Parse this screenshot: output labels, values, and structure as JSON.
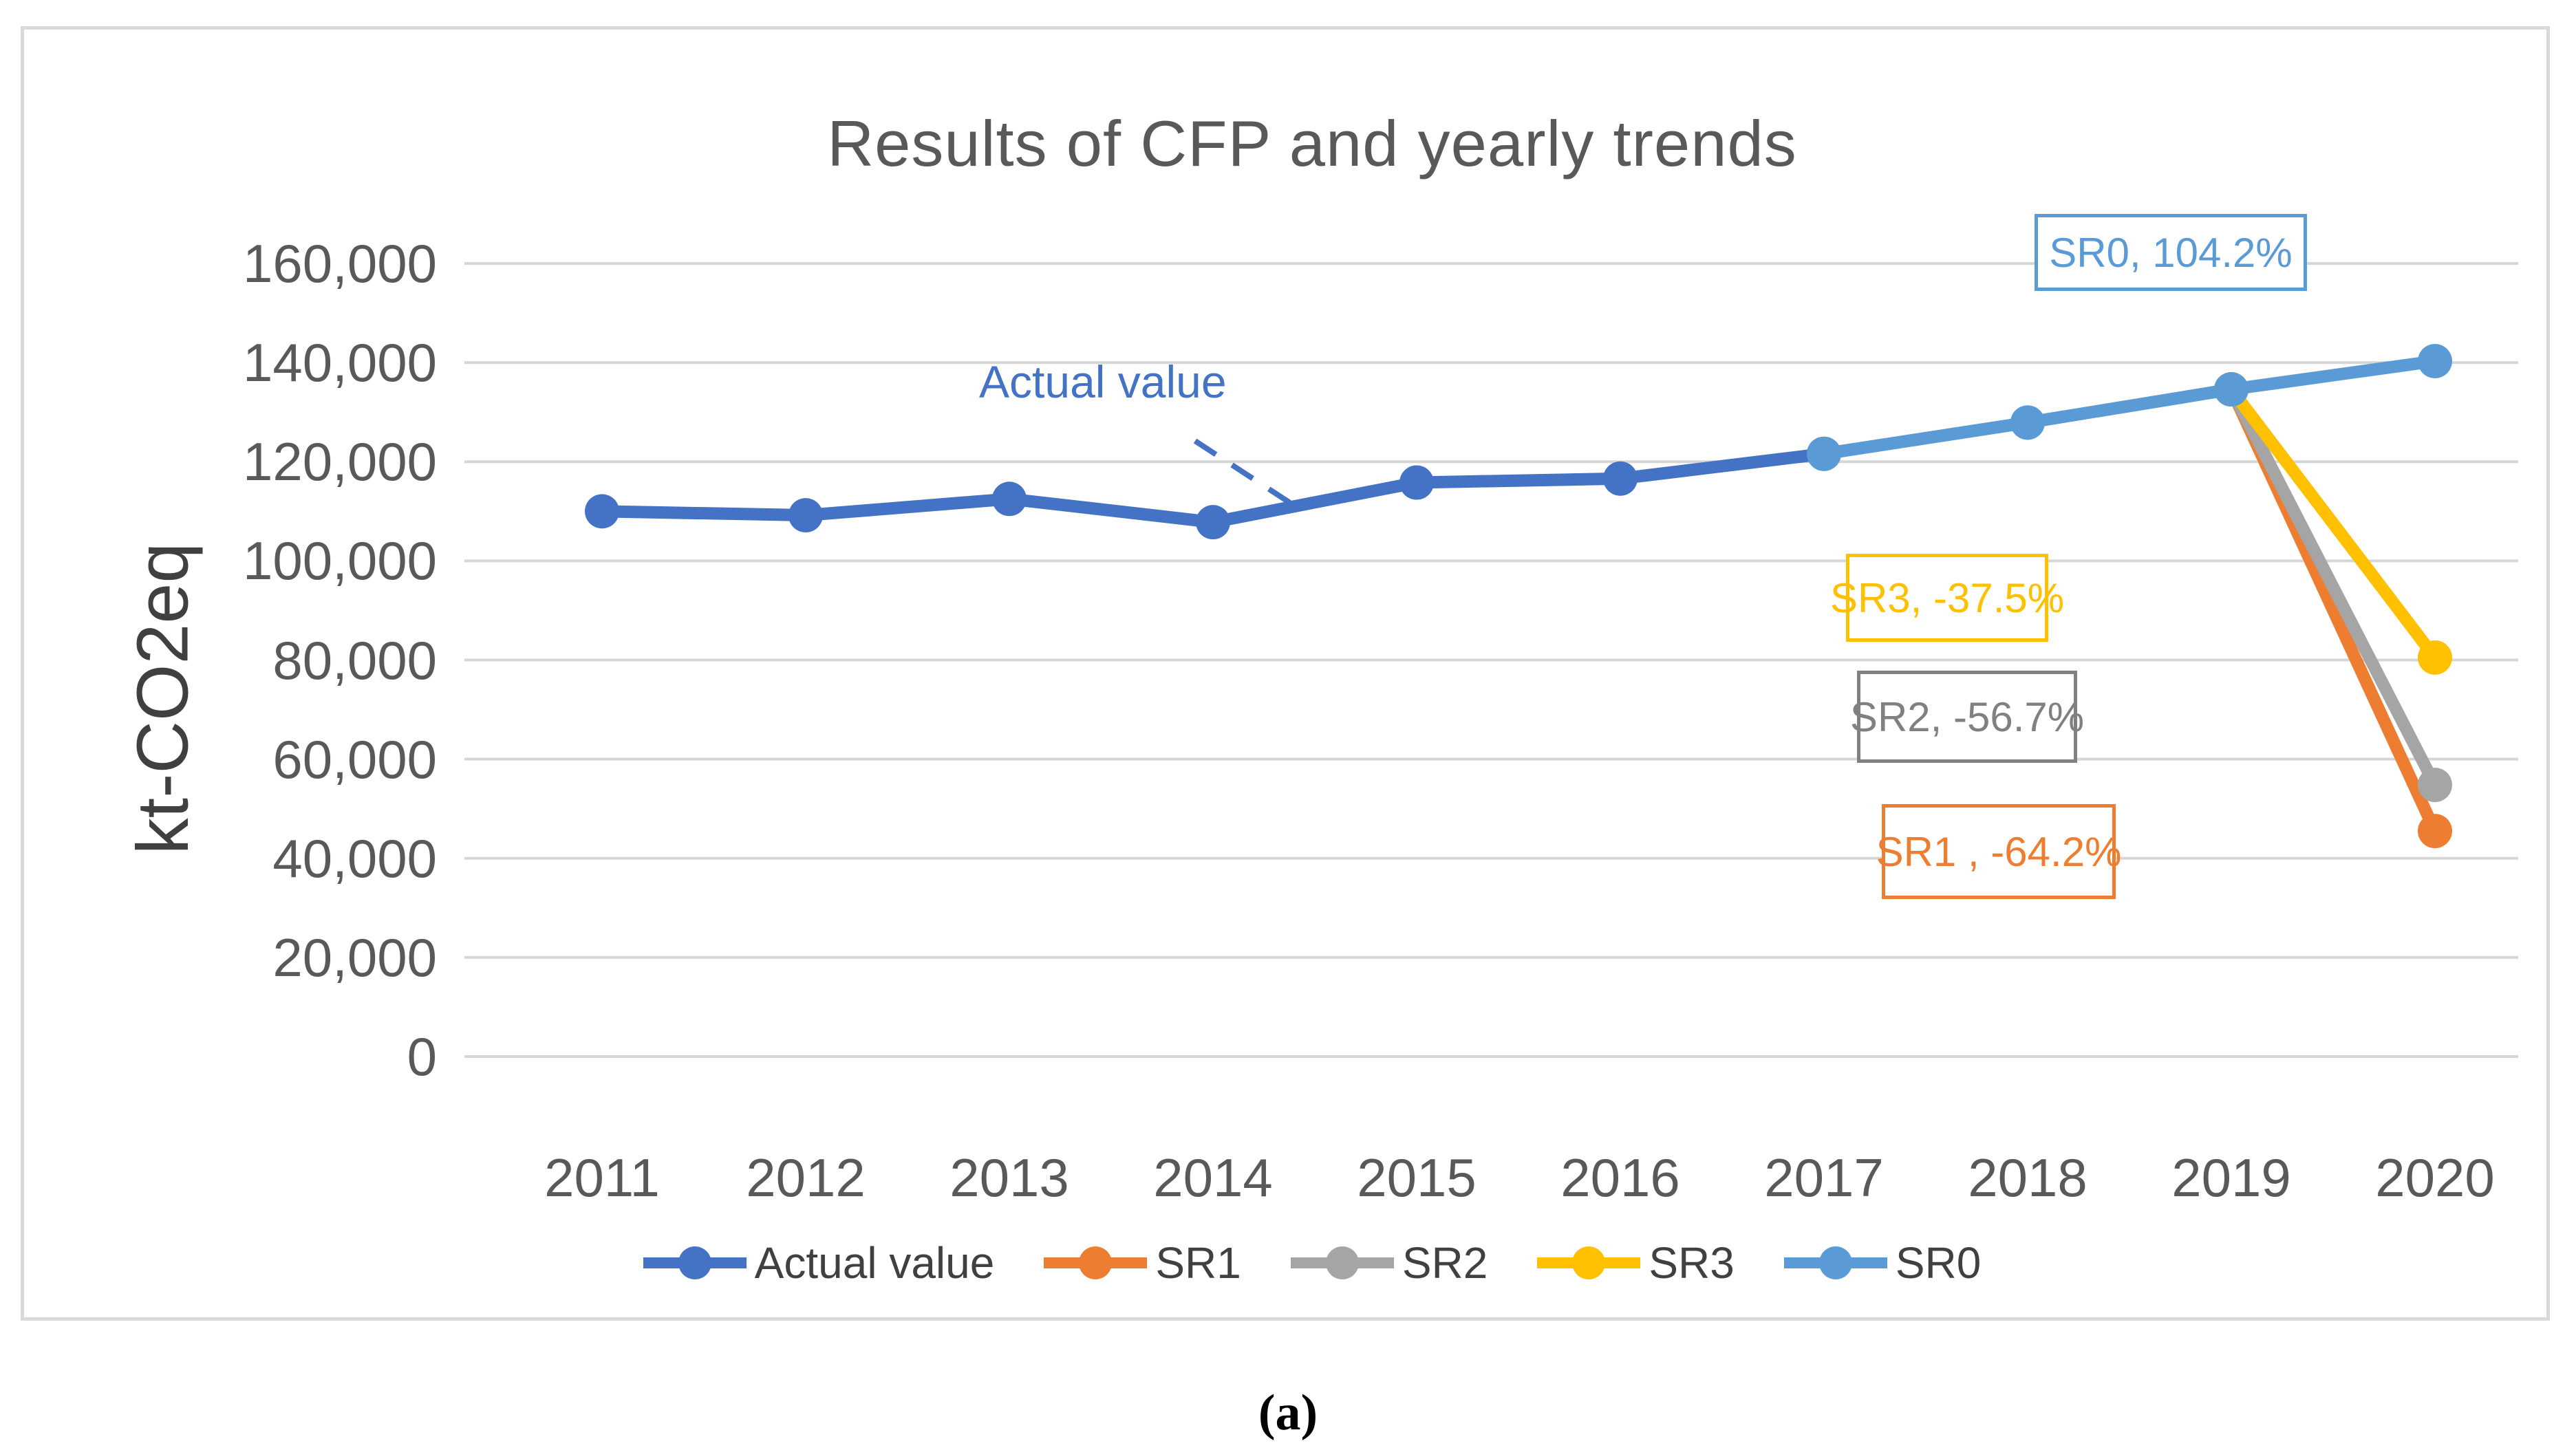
{
  "caption": "(a)",
  "colors": {
    "grid": "#d6d6d6",
    "frame": "#d9d9d9",
    "axis_text": "#595959",
    "legend_text": "#404040"
  },
  "chart_data": {
    "type": "line",
    "title": "Results of CFP and yearly trends",
    "xlabel": "",
    "ylabel": "kt-CO2eq",
    "ylim": [
      0,
      160000
    ],
    "grid": true,
    "legend_position": "bottom",
    "x": [
      2011,
      2012,
      2013,
      2014,
      2015,
      2016,
      2017,
      2018,
      2019,
      2020
    ],
    "x_labels": [
      "2011",
      "2012",
      "2013",
      "2014",
      "2015",
      "2016",
      "2017",
      "2018",
      "2019",
      "2020"
    ],
    "y_ticks": [
      "160,000",
      "140,000",
      "120,000",
      "100,000",
      "80,000",
      "60,000",
      "40,000",
      "20,000",
      "0"
    ],
    "series": [
      {
        "name": "Actual value",
        "color": "#4472C4",
        "x": [
          2011,
          2012,
          2013,
          2014,
          2015,
          2016,
          2017,
          2018,
          2019
        ],
        "values": [
          110000,
          109200,
          112500,
          107800,
          115800,
          116600,
          121600,
          127900,
          134600
        ]
      },
      {
        "name": "SR1",
        "color": "#ED7D31",
        "x": [
          2019,
          2020
        ],
        "values": [
          134600,
          45500
        ]
      },
      {
        "name": "SR2",
        "color": "#A5A5A5",
        "x": [
          2019,
          2020
        ],
        "values": [
          134600,
          54800
        ]
      },
      {
        "name": "SR3",
        "color": "#FFC000",
        "x": [
          2019,
          2020
        ],
        "values": [
          134600,
          80500
        ]
      },
      {
        "name": "SR0",
        "color": "#5B9BD5",
        "x": [
          2017,
          2018,
          2019,
          2020
        ],
        "values": [
          121600,
          127900,
          134600,
          140300
        ]
      }
    ],
    "annotations": {
      "actual_value_label": {
        "text": "Actual value",
        "color": "#4472C4"
      },
      "callouts": [
        {
          "id": "sr0",
          "text": "SR0, 104.2%",
          "color": "#5B9BD5"
        },
        {
          "id": "sr3",
          "text": "SR3, -37.5%",
          "color": "#FFC000"
        },
        {
          "id": "sr2",
          "text": "SR2, -56.7%",
          "color": "#808080"
        },
        {
          "id": "sr1",
          "text": "SR1 , -64.2%",
          "color": "#ED7D31"
        }
      ]
    }
  }
}
